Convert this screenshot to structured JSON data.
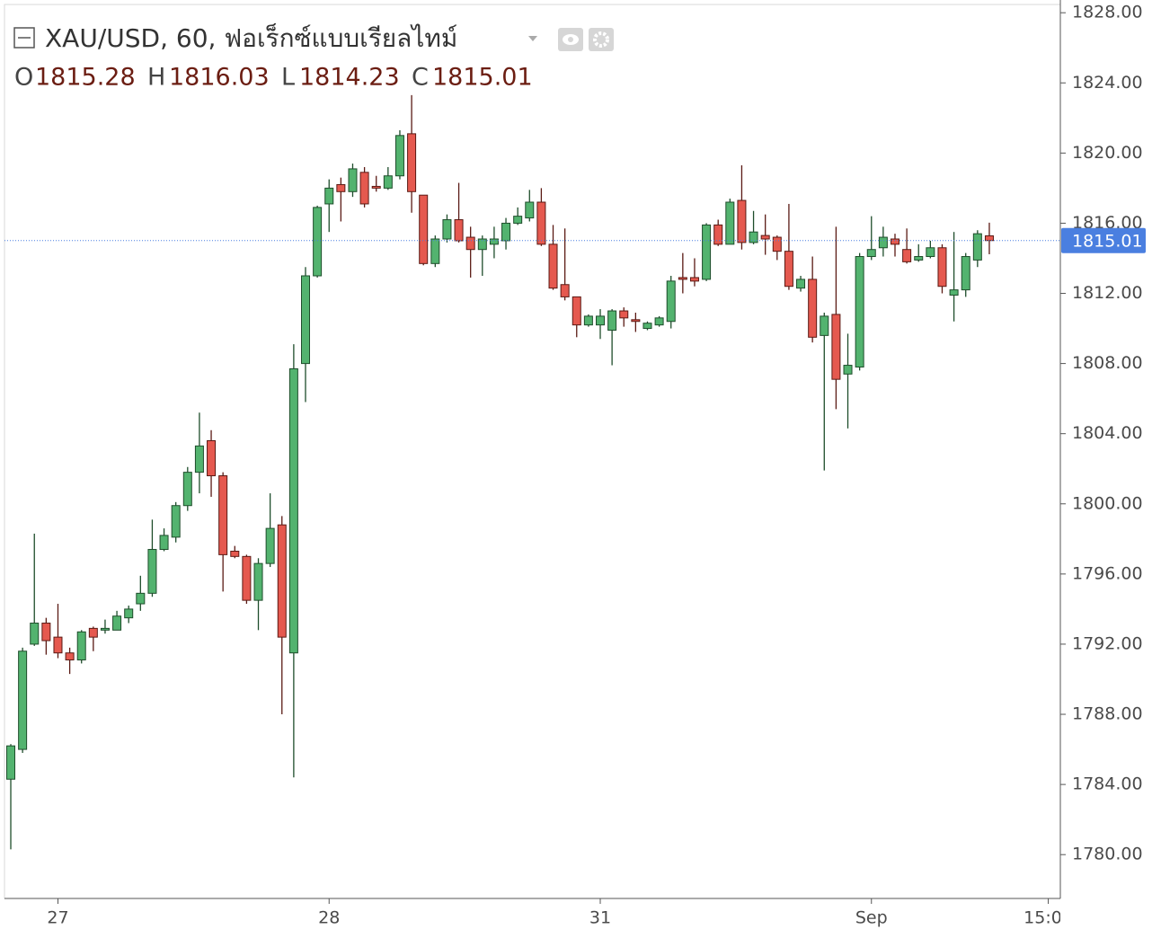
{
  "chart_data": {
    "type": "candlestick",
    "title": "XAU/USD, 60, ฟอเร็กซ์แบบเรียลไทม์",
    "ohlc_labels": [
      "O",
      "H",
      "L",
      "C"
    ],
    "categories": [
      null,
      null,
      null,
      null,
      "27",
      null,
      null,
      null,
      null,
      null,
      null,
      null,
      null,
      null,
      null,
      null,
      null,
      null,
      null,
      null,
      null,
      null,
      null,
      null,
      null,
      null,
      null,
      "28",
      null,
      null,
      null,
      null,
      null,
      null,
      null,
      null,
      null,
      null,
      null,
      null,
      null,
      null,
      null,
      null,
      null,
      null,
      null,
      null,
      null,
      null,
      "31",
      null,
      null,
      null,
      null,
      null,
      null,
      null,
      null,
      null,
      null,
      null,
      null,
      null,
      null,
      null,
      null,
      null,
      null,
      null,
      null,
      null,
      null,
      "Sep",
      null,
      null,
      null,
      null,
      null,
      null,
      null,
      null,
      null,
      null,
      null,
      null,
      null,
      null,
      "15:00"
    ],
    "open": [
      1784.3,
      1786.0,
      1792.0,
      1793.2,
      1792.4,
      1791.5,
      1791.1,
      1792.9,
      1792.8,
      1792.8,
      1793.5,
      1794.3,
      1794.9,
      1797.4,
      1798.1,
      1799.9,
      1801.8,
      1803.6,
      1801.6,
      1797.3,
      1797.0,
      1794.5,
      1796.6,
      1798.8,
      1791.5,
      1808.0,
      1813.0,
      1817.1,
      1818.2,
      1817.8,
      1818.9,
      1818.1,
      1818.0,
      1818.7,
      1821.1,
      1817.6,
      1813.7,
      1815.1,
      1816.2,
      1815.2,
      1814.5,
      1814.8,
      1815.0,
      1816.0,
      1816.3,
      1817.2,
      1814.8,
      1812.5,
      1811.8,
      1810.2,
      1810.2,
      1809.9,
      1811.0,
      1810.5,
      1810.0,
      1810.2,
      1810.4,
      1812.9,
      1812.9,
      1812.8,
      1815.9,
      1814.8,
      1817.3,
      1814.9,
      1815.3,
      1815.2,
      1814.4,
      1812.3,
      1812.8,
      1809.6,
      1810.8,
      1807.4,
      1807.8,
      1814.1,
      1814.6,
      1815.1,
      1814.5,
      1813.9,
      1814.1,
      1814.6,
      1811.9,
      1812.2,
      1813.9,
      1815.28,
      null,
      null,
      null,
      null,
      null
    ],
    "high": [
      1786.3,
      1791.8,
      1798.3,
      1793.5,
      1794.3,
      1791.8,
      1792.8,
      1793.0,
      1793.4,
      1793.9,
      1794.2,
      1795.9,
      1799.1,
      1798.6,
      1800.1,
      1802.1,
      1805.2,
      1804.2,
      1801.8,
      1797.6,
      1797.1,
      1796.9,
      1800.6,
      1799.3,
      1809.1,
      1813.5,
      1817.0,
      1818.5,
      1818.6,
      1819.4,
      1819.2,
      1818.7,
      1819.2,
      1821.3,
      1823.3,
      1817.6,
      1815.3,
      1816.5,
      1818.3,
      1815.8,
      1815.3,
      1815.8,
      1816.3,
      1816.9,
      1817.9,
      1818.0,
      1815.9,
      1815.7,
      1811.8,
      1810.8,
      1811.1,
      1811.1,
      1811.2,
      1810.9,
      1810.4,
      1810.7,
      1813.0,
      1814.3,
      1814.0,
      1816.0,
      1816.2,
      1817.4,
      1819.3,
      1816.7,
      1816.5,
      1815.3,
      1817.1,
      1813.0,
      1814.1,
      1810.9,
      1815.8,
      1809.7,
      1814.3,
      1816.4,
      1815.8,
      1815.4,
      1815.7,
      1814.8,
      1815.0,
      1814.8,
      1815.5,
      1814.3,
      1815.6,
      1816.03,
      null,
      null,
      null,
      null,
      null
    ],
    "low": [
      1780.3,
      1785.8,
      1791.9,
      1791.4,
      1791.2,
      1790.3,
      1790.9,
      1791.6,
      1792.6,
      1792.8,
      1793.2,
      1793.9,
      1794.7,
      1797.3,
      1797.8,
      1799.6,
      1800.6,
      1800.4,
      1795.0,
      1796.9,
      1794.3,
      1792.8,
      1796.4,
      1788.0,
      1784.4,
      1805.8,
      1812.9,
      1815.5,
      1816.1,
      1817.5,
      1816.9,
      1817.8,
      1817.9,
      1818.5,
      1816.6,
      1813.6,
      1813.5,
      1814.9,
      1814.9,
      1812.9,
      1813.0,
      1814.0,
      1814.5,
      1815.9,
      1816.1,
      1814.7,
      1812.2,
      1811.6,
      1809.5,
      1810.1,
      1809.4,
      1807.9,
      1810.1,
      1809.8,
      1809.9,
      1810.1,
      1810.0,
      1812.0,
      1812.4,
      1812.7,
      1814.7,
      1814.8,
      1814.5,
      1814.8,
      1814.2,
      1813.9,
      1812.2,
      1812.1,
      1809.2,
      1801.9,
      1805.4,
      1804.3,
      1807.6,
      1813.9,
      1814.1,
      1814.1,
      1813.7,
      1813.8,
      1814.0,
      1812.0,
      1810.4,
      1811.8,
      1813.5,
      1814.23,
      null,
      null,
      null,
      null,
      null
    ],
    "close": [
      1786.2,
      1791.6,
      1793.2,
      1792.2,
      1791.5,
      1791.1,
      1792.7,
      1792.4,
      1792.9,
      1793.6,
      1794.0,
      1794.9,
      1797.4,
      1798.2,
      1799.9,
      1801.8,
      1803.3,
      1801.6,
      1797.1,
      1797.0,
      1794.5,
      1796.6,
      1798.6,
      1792.4,
      1807.7,
      1813.0,
      1816.9,
      1818.0,
      1817.8,
      1819.1,
      1817.1,
      1818.0,
      1818.7,
      1821.0,
      1817.8,
      1813.7,
      1815.1,
      1816.2,
      1815.0,
      1814.5,
      1815.1,
      1815.1,
      1816.0,
      1816.4,
      1817.2,
      1814.8,
      1812.3,
      1811.8,
      1810.2,
      1810.7,
      1810.7,
      1811.0,
      1810.6,
      1810.4,
      1810.3,
      1810.6,
      1812.7,
      1812.8,
      1812.7,
      1815.9,
      1814.8,
      1817.2,
      1814.9,
      1815.5,
      1815.1,
      1814.4,
      1812.4,
      1812.8,
      1809.5,
      1810.7,
      1807.1,
      1807.9,
      1814.1,
      1814.5,
      1815.2,
      1814.8,
      1813.8,
      1814.1,
      1814.6,
      1812.4,
      1812.2,
      1814.1,
      1815.4,
      1815.01,
      null,
      null,
      null,
      null,
      null
    ],
    "up_color": "#53b36f",
    "down_color": "#e5594f",
    "ylim": [
      1777.5,
      1828.47
    ],
    "yticks": [
      {
        "value": 1780,
        "label": "1780.00"
      },
      {
        "value": 1784,
        "label": "1784.00"
      },
      {
        "value": 1788,
        "label": "1788.00"
      },
      {
        "value": 1792,
        "label": "1792.00"
      },
      {
        "value": 1796,
        "label": "1796.00"
      },
      {
        "value": 1800,
        "label": "1800.00"
      },
      {
        "value": 1804,
        "label": "1804.00"
      },
      {
        "value": 1808,
        "label": "1808.00"
      },
      {
        "value": 1812,
        "label": "1812.00"
      },
      {
        "value": 1816,
        "label": "1816.00"
      },
      {
        "value": 1820,
        "label": "1820.00"
      },
      {
        "value": 1824,
        "label": "1824.00"
      },
      {
        "value": 1828,
        "label": "1828.00"
      }
    ],
    "price_line": true,
    "price_line_color": "#4a7fe0"
  }
}
